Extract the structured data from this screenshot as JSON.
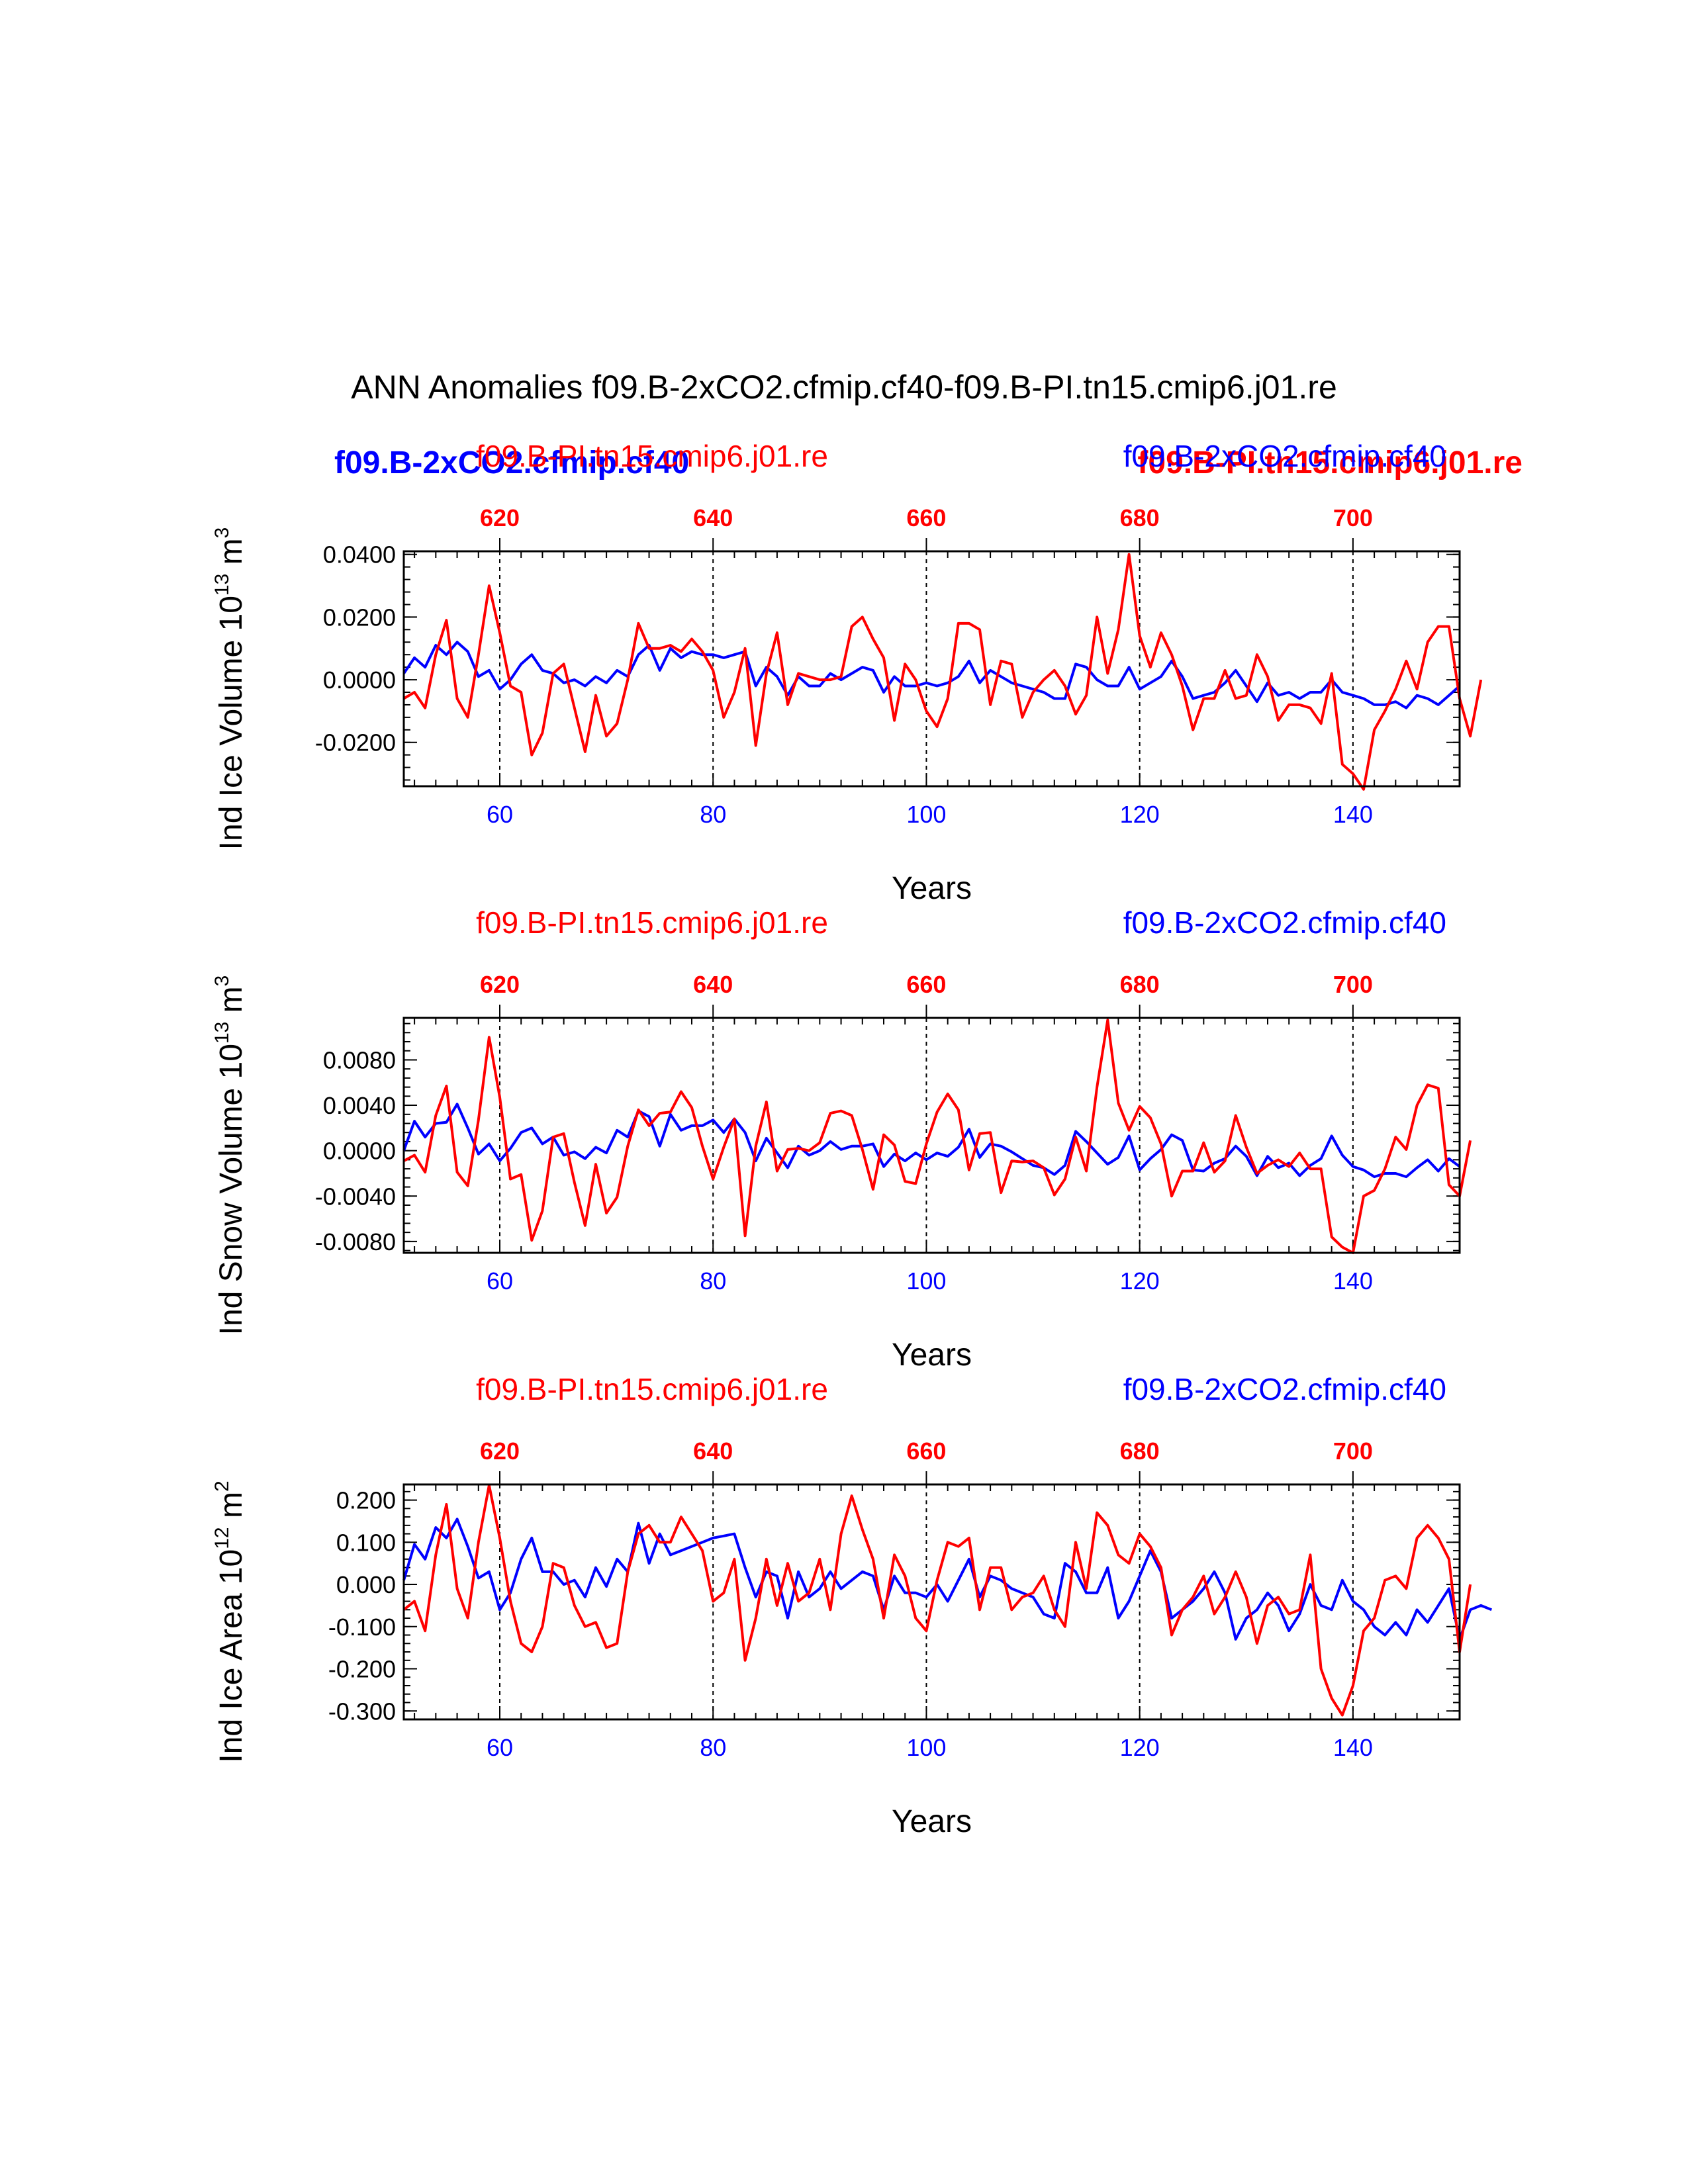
{
  "title": "ANN Anomalies f09.B-2xCO2.cfmip.cf40-f09.B-PI.tn15.cmip6.j01.re",
  "legend": {
    "blue_bold": "f09.B-2xCO2.cfmip.cf40",
    "red_bold": "f09.B-PI.tn15.cmip6.j01.re"
  },
  "colors": {
    "blue": "#0000ff",
    "red": "#ff0000",
    "axis": "#000000"
  },
  "chart_data": [
    {
      "type": "line",
      "ylabel": "Ind Ice Volume 10",
      "ylabel_sup": "13",
      "ylabel_unit": " m",
      "ylabel_unit_sup": "3",
      "xlabel": "Years",
      "top_label_red": "f09.B-PI.tn15.cmip6.j01.re",
      "top_label_blue": "f09.B-2xCO2.cfmip.cf40",
      "xlim": [
        51,
        150
      ],
      "ylim": [
        -0.034,
        0.041
      ],
      "bottom_ticks": [
        "60",
        "80",
        "100",
        "120",
        "140"
      ],
      "top_ticks": [
        "620",
        "640",
        "660",
        "680",
        "700"
      ],
      "y_ticks": [
        "0.0400",
        "0.0200",
        "0.0000",
        "-0.0200"
      ],
      "y_tick_values": [
        0.04,
        0.02,
        0.0,
        -0.02
      ],
      "series": [
        {
          "name": "f09.B-2xCO2.cfmip.cf40",
          "color": "#0000ff",
          "values": [
            0.002,
            0.007,
            0.004,
            0.011,
            0.008,
            0.012,
            0.009,
            0.001,
            0.003,
            -0.003,
            0,
            0.005,
            0.008,
            0.003,
            0.002,
            -0.001,
            0,
            -0.002,
            0.001,
            -0.001,
            0.003,
            0.001,
            0.008,
            0.011,
            0.003,
            0.01,
            0.007,
            0.009,
            0.008,
            0.008,
            0.007,
            0.008,
            0.009,
            -0.002,
            0.004,
            0.001,
            -0.005,
            0.001,
            -0.002,
            -0.002,
            0.002,
            0,
            0.002,
            0.004,
            0.003,
            -0.004,
            0.001,
            -0.002,
            -0.002,
            -0.001,
            -0.002,
            -0.001,
            0.001,
            0.006,
            -0.001,
            0.003,
            0.001,
            -0.001,
            -0.002,
            -0.003,
            -0.004,
            -0.006,
            -0.006,
            0.005,
            0.004,
            0,
            -0.002,
            -0.002,
            0.004,
            -0.003,
            -0.001,
            0.001,
            0.006,
            0.001,
            -0.006,
            -0.005,
            -0.004,
            -0.001,
            0.003,
            -0.002,
            -0.007,
            -0.001,
            -0.005,
            -0.004,
            -0.006,
            -0.004,
            -0.004,
            0,
            -0.004,
            -0.005,
            -0.006,
            -0.008,
            -0.008,
            -0.007,
            -0.009,
            -0.005,
            -0.006,
            -0.008,
            -0.005,
            -0.002
          ]
        },
        {
          "name": "f09.B-PI.tn15.cmip6.j01.re",
          "color": "#ff0000",
          "values": [
            -0.006,
            -0.004,
            -0.009,
            0.008,
            0.019,
            -0.006,
            -0.012,
            0.008,
            0.03,
            0.015,
            -0.002,
            -0.004,
            -0.024,
            -0.017,
            0.002,
            0.005,
            -0.009,
            -0.023,
            -0.005,
            -0.018,
            -0.014,
            0,
            0.018,
            0.01,
            0.01,
            0.011,
            0.009,
            0.013,
            0.009,
            0.003,
            -0.012,
            -0.004,
            0.01,
            -0.021,
            0.002,
            0.015,
            -0.008,
            0.002,
            0.001,
            0,
            0,
            0.001,
            0.017,
            0.02,
            0.013,
            0.007,
            -0.013,
            0.005,
            0,
            -0.01,
            -0.015,
            -0.006,
            0.018,
            0.018,
            0.016,
            -0.008,
            0.006,
            0.005,
            -0.012,
            -0.004,
            0,
            0.003,
            -0.002,
            -0.011,
            -0.005,
            0.02,
            0.002,
            0.016,
            0.04,
            0.014,
            0.004,
            0.015,
            0.008,
            -0.002,
            -0.016,
            -0.006,
            -0.006,
            0.003,
            -0.006,
            -0.005,
            0.008,
            0.001,
            -0.013,
            -0.008,
            -0.008,
            -0.009,
            -0.014,
            0.002,
            -0.027,
            -0.03,
            -0.035,
            -0.016,
            -0.01,
            -0.003,
            0.006,
            -0.003,
            0.012,
            0.017,
            0.017,
            -0.006,
            -0.018,
            0
          ]
        }
      ]
    },
    {
      "type": "line",
      "ylabel": "Ind Snow Volume 10",
      "ylabel_sup": "13",
      "ylabel_unit": " m",
      "ylabel_unit_sup": "3",
      "xlabel": "Years",
      "top_label_red": "f09.B-PI.tn15.cmip6.j01.re",
      "top_label_blue": "f09.B-2xCO2.cfmip.cf40",
      "xlim": [
        51,
        150
      ],
      "ylim": [
        -0.009,
        0.0117
      ],
      "bottom_ticks": [
        "60",
        "80",
        "100",
        "120",
        "140"
      ],
      "top_ticks": [
        "620",
        "640",
        "660",
        "680",
        "700"
      ],
      "y_ticks": [
        "0.0080",
        "0.0040",
        "0.0000",
        "-0.0040",
        "-0.0080"
      ],
      "y_tick_values": [
        0.008,
        0.004,
        0.0,
        -0.004,
        -0.008
      ],
      "series": [
        {
          "name": "f09.B-2xCO2.cfmip.cf40",
          "color": "#0000ff",
          "values": [
            0,
            0.0026,
            0.0012,
            0.0024,
            0.0025,
            0.0041,
            0.002,
            -0.0003,
            0.0006,
            -0.0009,
            0.0002,
            0.0016,
            0.002,
            0.0006,
            0.0012,
            -0.0004,
            -0.0001,
            -0.0007,
            0.0003,
            -0.0002,
            0.0018,
            0.0012,
            0.0035,
            0.003,
            0.0004,
            0.0032,
            0.0018,
            0.0022,
            0.0022,
            0.0027,
            0.0016,
            0.0028,
            0.0016,
            -0.0009,
            0.0011,
            -0.0002,
            -0.0015,
            0.0004,
            -0.0004,
            0,
            0.0008,
            0.0001,
            0.0004,
            0.0004,
            0.0006,
            -0.0014,
            -0.0003,
            -0.0009,
            -0.0002,
            -0.0008,
            -0.0002,
            -0.0005,
            0.0003,
            0.0019,
            -0.0006,
            0.0006,
            0.0004,
            -0.0001,
            -0.0007,
            -0.0013,
            -0.0015,
            -0.0021,
            -0.0013,
            0.0017,
            0.0008,
            -0.0002,
            -0.0012,
            -0.0006,
            0.0013,
            -0.0017,
            -0.0007,
            0.0001,
            0.0014,
            0.0009,
            -0.0017,
            -0.0018,
            -0.0011,
            -0.0007,
            0.0004,
            -0.0005,
            -0.0022,
            -0.0005,
            -0.0015,
            -0.0011,
            -0.0022,
            -0.0013,
            -0.0007,
            0.0013,
            -0.0004,
            -0.0014,
            -0.0017,
            -0.0023,
            -0.002,
            -0.002,
            -0.0023,
            -0.0015,
            -0.0008,
            -0.0018,
            -0.0007,
            -0.0014
          ]
        },
        {
          "name": "f09.B-PI.tn15.cmip6.j01.re",
          "color": "#ff0000",
          "values": [
            -0.0009,
            -0.0004,
            -0.0019,
            0.0031,
            0.0057,
            -0.0019,
            -0.0031,
            0.0027,
            0.01,
            0.0047,
            -0.0025,
            -0.0021,
            -0.0079,
            -0.0053,
            0.0012,
            0.0015,
            -0.0028,
            -0.0066,
            -0.0012,
            -0.0055,
            -0.0041,
            0.0004,
            0.0036,
            0.0022,
            0.0033,
            0.0034,
            0.0052,
            0.0038,
            0.0004,
            -0.0025,
            0.0003,
            0.0028,
            -0.0075,
            0.0004,
            0.0043,
            -0.0018,
            0.0001,
            0.0002,
            0,
            0.0007,
            0.0033,
            0.0035,
            0.0031,
            0.0001,
            -0.0034,
            0.0014,
            0.0005,
            -0.0027,
            -0.0029,
            0.0006,
            0.0034,
            0.005,
            0.0036,
            -0.0017,
            0.0015,
            0.0016,
            -0.0037,
            -0.0009,
            -0.001,
            -0.0009,
            -0.0015,
            -0.0039,
            -0.0025,
            0.0012,
            -0.0018,
            0.0056,
            0.0115,
            0.0042,
            0.0018,
            0.0039,
            0.0029,
            0.0006,
            -0.004,
            -0.0018,
            -0.0018,
            0.0007,
            -0.0019,
            -0.0009,
            0.0031,
            0.0003,
            -0.002,
            -0.0013,
            -0.0008,
            -0.0014,
            -0.0002,
            -0.0016,
            -0.0016,
            -0.0076,
            -0.0085,
            -0.009,
            -0.004,
            -0.0035,
            -0.0016,
            0.0012,
            0.0001,
            0.004,
            0.0058,
            0.0055,
            -0.003,
            -0.004,
            0.0009
          ]
        }
      ]
    },
    {
      "type": "line",
      "ylabel": "Ind Ice Area 10",
      "ylabel_sup": "12",
      "ylabel_unit": " m",
      "ylabel_unit_sup": "2",
      "xlabel": "Years",
      "top_label_red": "f09.B-PI.tn15.cmip6.j01.re",
      "top_label_blue": "f09.B-2xCO2.cfmip.cf40",
      "xlim": [
        51,
        150
      ],
      "ylim": [
        -0.32,
        0.237
      ],
      "bottom_ticks": [
        "60",
        "80",
        "100",
        "120",
        "140"
      ],
      "top_ticks": [
        "620",
        "640",
        "660",
        "680",
        "700"
      ],
      "y_ticks": [
        "0.200",
        "0.100",
        "0.000",
        "-0.100",
        "-0.200",
        "-0.300"
      ],
      "y_tick_values": [
        0.2,
        0.1,
        0.0,
        -0.1,
        -0.2,
        -0.3
      ],
      "series": [
        {
          "name": "f09.B-2xCO2.cfmip.cf40",
          "color": "#0000ff",
          "values": [
            0.01,
            0.095,
            0.06,
            0.135,
            0.11,
            0.155,
            0.09,
            0.015,
            0.03,
            -0.06,
            -0.02,
            0.06,
            0.11,
            0.03,
            0.03,
            0,
            0.01,
            -0.03,
            0.04,
            -0.005,
            0.06,
            0.03,
            0.145,
            0.05,
            0.12,
            0.07,
            0.08,
            0.09,
            0.1,
            0.11,
            0.115,
            0.12,
            0.04,
            -0.03,
            0.03,
            0.02,
            -0.08,
            0.03,
            -0.03,
            -0.01,
            0.03,
            -0.01,
            0.01,
            0.03,
            0.02,
            -0.06,
            0.02,
            -0.02,
            -0.02,
            -0.03,
            0,
            -0.04,
            0.01,
            0.06,
            -0.03,
            0.02,
            0.01,
            -0.01,
            -0.02,
            -0.03,
            -0.07,
            -0.08,
            0.05,
            0.03,
            -0.02,
            -0.02,
            0.04,
            -0.08,
            -0.04,
            0.02,
            0.08,
            0.03,
            -0.08,
            -0.06,
            -0.04,
            -0.01,
            0.03,
            -0.02,
            -0.13,
            -0.08,
            -0.06,
            -0.02,
            -0.05,
            -0.11,
            -0.07,
            0,
            -0.05,
            -0.06,
            0.01,
            -0.04,
            -0.06,
            -0.1,
            -0.12,
            -0.09,
            -0.12,
            -0.06,
            -0.09,
            -0.05,
            -0.01,
            -0.13,
            -0.06,
            -0.05,
            -0.06
          ]
        },
        {
          "name": "f09.B-PI.tn15.cmip6.j01.re",
          "color": "#ff0000",
          "values": [
            -0.06,
            -0.04,
            -0.11,
            0.07,
            0.19,
            -0.01,
            -0.08,
            0.1,
            0.235,
            0.11,
            -0.04,
            -0.14,
            -0.16,
            -0.1,
            0.05,
            0.04,
            -0.05,
            -0.1,
            -0.09,
            -0.15,
            -0.14,
            0.03,
            0.12,
            0.14,
            0.1,
            0.1,
            0.16,
            0.12,
            0.08,
            -0.04,
            -0.02,
            0.06,
            -0.18,
            -0.08,
            0.06,
            -0.05,
            0.05,
            -0.04,
            -0.02,
            0.06,
            -0.06,
            0.12,
            0.21,
            0.13,
            0.06,
            -0.08,
            0.07,
            0.02,
            -0.08,
            -0.11,
            0.01,
            0.1,
            0.09,
            0.11,
            -0.06,
            0.04,
            0.04,
            -0.06,
            -0.03,
            -0.02,
            0.02,
            -0.06,
            -0.1,
            0.1,
            -0.01,
            0.17,
            0.14,
            0.07,
            0.05,
            0.12,
            0.09,
            0.04,
            -0.12,
            -0.06,
            -0.03,
            0.02,
            -0.07,
            -0.03,
            0.03,
            -0.03,
            -0.14,
            -0.05,
            -0.03,
            -0.07,
            -0.06,
            0.07,
            -0.2,
            -0.27,
            -0.31,
            -0.24,
            -0.11,
            -0.08,
            0.01,
            0.02,
            -0.01,
            0.11,
            0.14,
            0.11,
            0.06,
            -0.16,
            0
          ]
        }
      ]
    }
  ]
}
